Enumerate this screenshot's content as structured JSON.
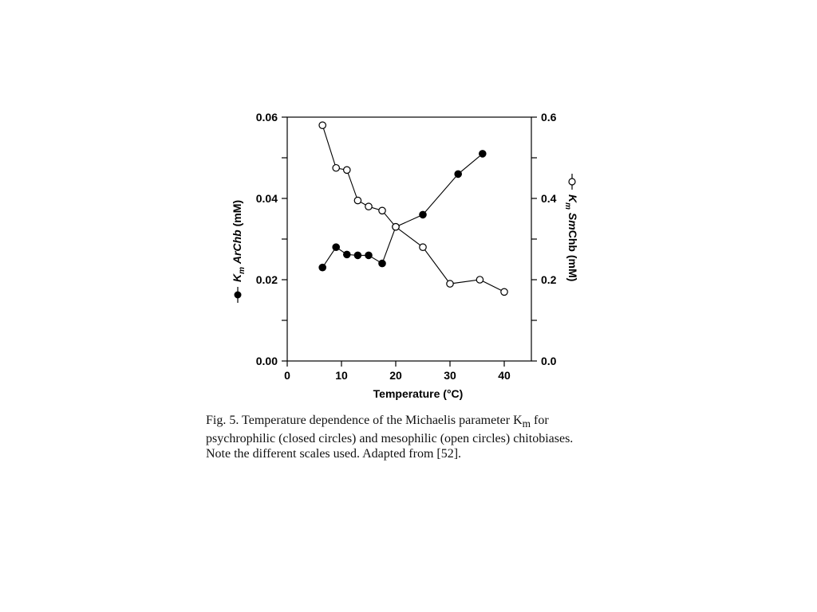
{
  "chart_data": {
    "type": "scatter",
    "x_axis": {
      "label": "Temperature (°C)",
      "range": [
        0,
        45
      ],
      "ticks": [
        0,
        10,
        20,
        30,
        40
      ],
      "tick_labels": [
        "0",
        "10",
        "20",
        "30",
        "40"
      ]
    },
    "y_axis_left": {
      "label_prefix": "K",
      "label_subscript": "m",
      "label_italic": "ArChb",
      "label_suffix": "(mM)",
      "range": [
        0,
        0.06
      ],
      "ticks": [
        0,
        0.01,
        0.02,
        0.03,
        0.04,
        0.05,
        0.06
      ],
      "tick_labels": [
        "0.00",
        "",
        "0.02",
        "",
        "0.04",
        "",
        "0.06"
      ]
    },
    "y_axis_right": {
      "label_prefix": "K",
      "label_subscript": "m",
      "label_italic": "Sm",
      "label_rest": "Chb",
      "label_suffix": "(mM)",
      "range": [
        0,
        0.6
      ],
      "ticks": [
        0,
        0.1,
        0.2,
        0.3,
        0.4,
        0.5,
        0.6
      ],
      "tick_labels": [
        "0.0",
        "",
        "0.2",
        "",
        "0.4",
        "",
        "0.6"
      ]
    },
    "series": [
      {
        "axis": "left",
        "marker": "closed-circle",
        "x": [
          6.5,
          9,
          11,
          13,
          15,
          17.5,
          20,
          25,
          31.5,
          36
        ],
        "y": [
          0.023,
          0.028,
          0.0262,
          0.026,
          0.026,
          0.024,
          0.033,
          0.036,
          0.046,
          0.051
        ]
      },
      {
        "axis": "right",
        "marker": "open-circle",
        "x": [
          6.5,
          9,
          11,
          13,
          15,
          17.5,
          20,
          25,
          30,
          35.5,
          40
        ],
        "y": [
          0.58,
          0.475,
          0.47,
          0.395,
          0.38,
          0.37,
          0.33,
          0.28,
          0.19,
          0.2,
          0.17
        ]
      }
    ],
    "grid": false,
    "legend": "in-axis-labels"
  },
  "caption": {
    "lines": [
      "Fig. 5. Temperature dependence of the Michaelis parameter K",
      "psychrophilic (closed circles) and mesophilic (open circles) chitobiases.",
      "Note the different scales used. Adapted from [52]."
    ],
    "line1_subscript": "m",
    "line1_tail": " for"
  }
}
